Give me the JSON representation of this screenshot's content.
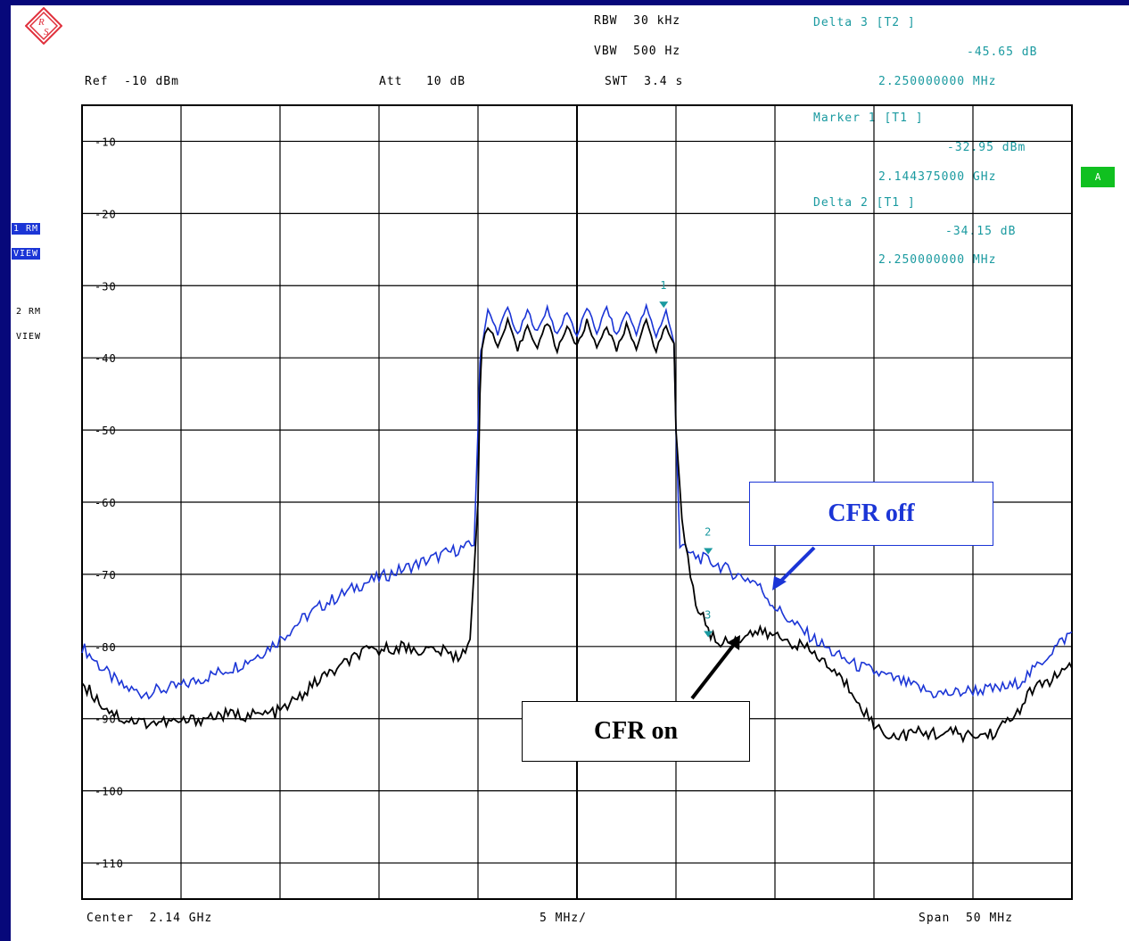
{
  "header": {
    "rbw": "RBW  30 kHz",
    "vbw": "VBW  500 Hz",
    "swt": "SWT  3.4 s",
    "ref": "Ref  -10 dBm",
    "att": "Att   10 dB"
  },
  "markers": {
    "delta3_title": "Delta 3 [T2 ]",
    "delta3_value": "-45.65 dB",
    "delta3_freq": "2.250000000 MHz",
    "marker1_title": "Marker 1 [T1 ]",
    "marker1_value": "-32.95 dBm",
    "marker1_freq": "2.144375000 GHz",
    "delta2_title": "Delta 2 [T1 ]",
    "delta2_value": "-34.15 dB",
    "delta2_freq": "2.250000000 MHz"
  },
  "side_labels": {
    "trace1_mode": "1 RM",
    "trace1_view": "VIEW",
    "trace2_mode": "2 RM",
    "trace2_view": "VIEW",
    "status_badge": "A"
  },
  "footer": {
    "center": "Center  2.14 GHz",
    "div": "5 MHz/",
    "span": "Span  50 MHz"
  },
  "annotations": {
    "cfr_off": "CFR off",
    "cfr_on": "CFR on"
  },
  "colors": {
    "frame": "#07087a",
    "cfr_off_trace": "#1b35d6",
    "cfr_on_trace": "#000000",
    "marker": "#1a9aa0",
    "badge": "#10c020"
  },
  "chart_data": {
    "type": "line",
    "title": "",
    "xlabel": "",
    "ylabel": "",
    "x_unit": "MHz offset from center 2.14 GHz",
    "xlim": [
      -25,
      25
    ],
    "ylim": [
      -115,
      -5
    ],
    "y_ticks": [
      -10,
      -20,
      -30,
      -40,
      -50,
      -60,
      -70,
      -80,
      -90,
      -100,
      -110
    ],
    "y_tick_labels": [
      "-10",
      "-20",
      "-30",
      "-40",
      "-50",
      "-60",
      "-70",
      "-80",
      "-90",
      "-100",
      "-110"
    ],
    "grid": true,
    "series": [
      {
        "name": "CFR off",
        "color": "#1b35d6",
        "x": [
          -25,
          -24,
          -23,
          -22,
          -21,
          -20,
          -19,
          -18,
          -17,
          -16,
          -15,
          -14,
          -13,
          -12,
          -11,
          -10,
          -9,
          -8,
          -7,
          -6,
          -5.2,
          -5.0,
          -4.9,
          -4.8,
          -4.5,
          -4.0,
          -3.5,
          -3.0,
          -2.5,
          -2.0,
          -1.5,
          -1.0,
          -0.5,
          0,
          0.5,
          1.0,
          1.5,
          2.0,
          2.5,
          3.0,
          3.5,
          4.0,
          4.5,
          4.9,
          5.0,
          5.2,
          5.6,
          6,
          7,
          8,
          9,
          10,
          11,
          12,
          13,
          14,
          15,
          16,
          17,
          18,
          19,
          20,
          21,
          22,
          23,
          24,
          25
        ],
        "y": [
          -80,
          -83,
          -85.5,
          -86.5,
          -86,
          -85.5,
          -84.5,
          -83.5,
          -82.5,
          -81,
          -79,
          -76.5,
          -74.5,
          -73,
          -71.5,
          -70.5,
          -69.5,
          -68.5,
          -67.5,
          -66.5,
          -66,
          -50,
          -40,
          -38,
          -33.5,
          -36.5,
          -33,
          -37,
          -33.5,
          -36.5,
          -33,
          -37,
          -33.5,
          -37,
          -33,
          -36.5,
          -33,
          -37,
          -33.5,
          -36.5,
          -33,
          -37,
          -33.5,
          -38,
          -50,
          -66,
          -67,
          -67.5,
          -68.5,
          -70,
          -71,
          -74.5,
          -77,
          -79,
          -81,
          -82.5,
          -83.5,
          -84.5,
          -85.5,
          -86.5,
          -86.5,
          -86,
          -86,
          -85.5,
          -83.5,
          -80.5,
          -78
        ]
      },
      {
        "name": "CFR on",
        "color": "#000000",
        "x": [
          -25,
          -24,
          -23,
          -22,
          -21,
          -20,
          -19,
          -18,
          -17,
          -16,
          -15,
          -14,
          -13,
          -12,
          -11,
          -10,
          -9,
          -8,
          -7,
          -6,
          -5.4,
          -5.0,
          -4.9,
          -4.8,
          -4.5,
          -4.0,
          -3.5,
          -3.0,
          -2.5,
          -2.0,
          -1.5,
          -1.0,
          -0.5,
          0,
          0.5,
          1.0,
          1.5,
          2.0,
          2.5,
          3.0,
          3.5,
          4.0,
          4.5,
          4.9,
          5.0,
          5.3,
          5.6,
          6,
          7,
          8,
          9,
          10,
          11,
          12,
          13,
          14,
          15,
          16,
          17,
          18,
          19,
          20,
          21,
          22,
          23,
          24,
          25
        ],
        "y": [
          -85,
          -88,
          -90,
          -90.5,
          -90.5,
          -90.5,
          -90,
          -89.5,
          -89.5,
          -89.5,
          -89,
          -87,
          -84.5,
          -83,
          -81,
          -80.5,
          -80,
          -80.5,
          -80.5,
          -81.5,
          -79,
          -60,
          -45,
          -38,
          -35.5,
          -38.5,
          -35,
          -39,
          -35.5,
          -38.5,
          -35,
          -39,
          -35.5,
          -38.5,
          -35,
          -38.5,
          -35.5,
          -39,
          -35.5,
          -38.5,
          -35,
          -39,
          -35.5,
          -38,
          -50,
          -62,
          -68,
          -74,
          -79.5,
          -79,
          -78,
          -78.5,
          -79.5,
          -81,
          -83.5,
          -86.5,
          -91,
          -92.5,
          -92,
          -92,
          -92,
          -92.5,
          -92,
          -90,
          -86,
          -84.5,
          -83
        ]
      }
    ],
    "markers": [
      {
        "label": "1",
        "x": 4.38,
        "y": -32.95,
        "trace": "CFR off"
      },
      {
        "label": "2",
        "x": 6.63,
        "y": -67.1,
        "trace": "CFR off"
      },
      {
        "label": "3",
        "x": 6.63,
        "y": -78.6,
        "trace": "CFR on"
      }
    ]
  }
}
